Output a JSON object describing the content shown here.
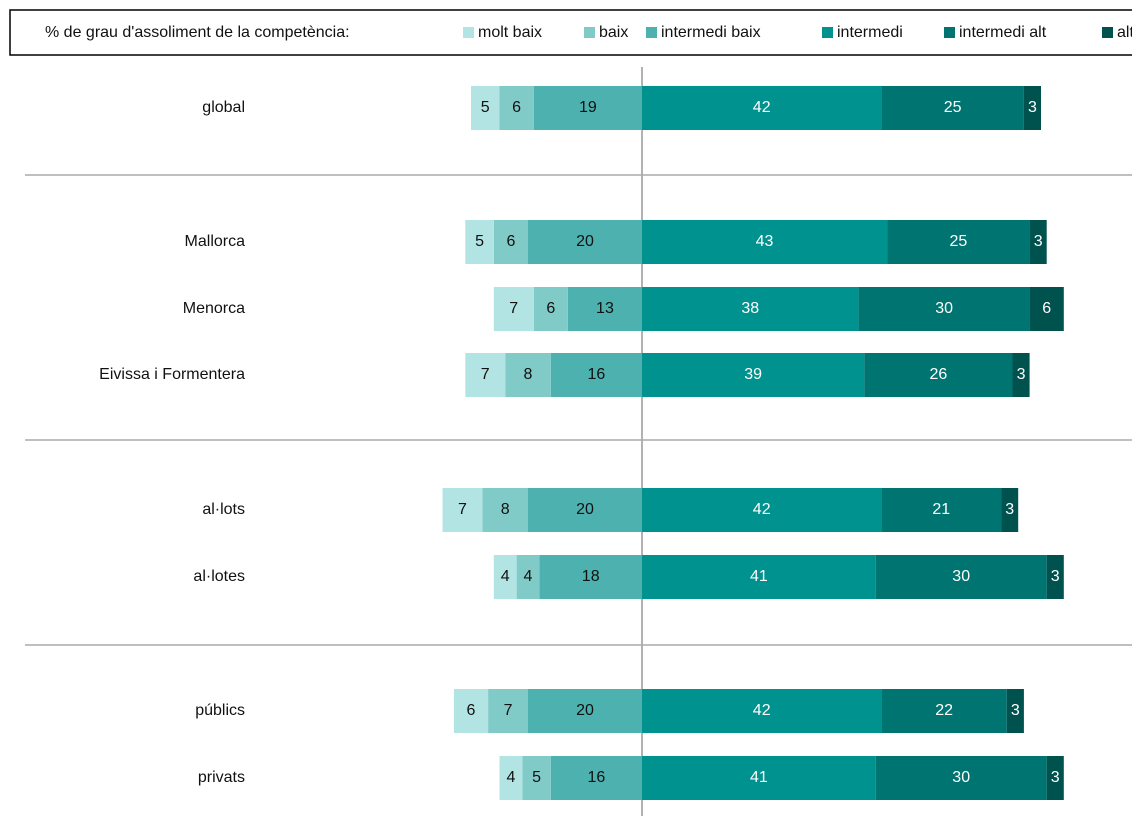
{
  "chart_data": {
    "type": "diverging-bar",
    "legend_title": "% de grau d'assoliment de la competència:",
    "categories": [
      "global",
      "Mallorca",
      "Menorca",
      "Eivissa i Formentera",
      "al·lots",
      "al·lotes",
      "públics",
      "privats"
    ],
    "series": [
      {
        "name": "molt baix",
        "color": "#b3e4e4",
        "values": [
          5,
          5,
          7,
          7,
          7,
          4,
          6,
          4
        ]
      },
      {
        "name": "baix",
        "color": "#80cac7",
        "values": [
          6,
          6,
          6,
          8,
          8,
          4,
          7,
          5
        ]
      },
      {
        "name": "intermedi baix",
        "color": "#4db1af",
        "values": [
          19,
          20,
          13,
          16,
          20,
          18,
          20,
          16
        ]
      },
      {
        "name": "intermedi",
        "color": "#00928f",
        "values": [
          42,
          43,
          38,
          39,
          42,
          41,
          42,
          41
        ]
      },
      {
        "name": "intermedi alt",
        "color": "#007471",
        "values": [
          25,
          25,
          30,
          26,
          21,
          30,
          22,
          30
        ]
      },
      {
        "name": "alt",
        "color": "#00524f",
        "values": [
          3,
          3,
          6,
          3,
          3,
          3,
          3,
          3
        ]
      }
    ],
    "negative_series": 3
  }
}
